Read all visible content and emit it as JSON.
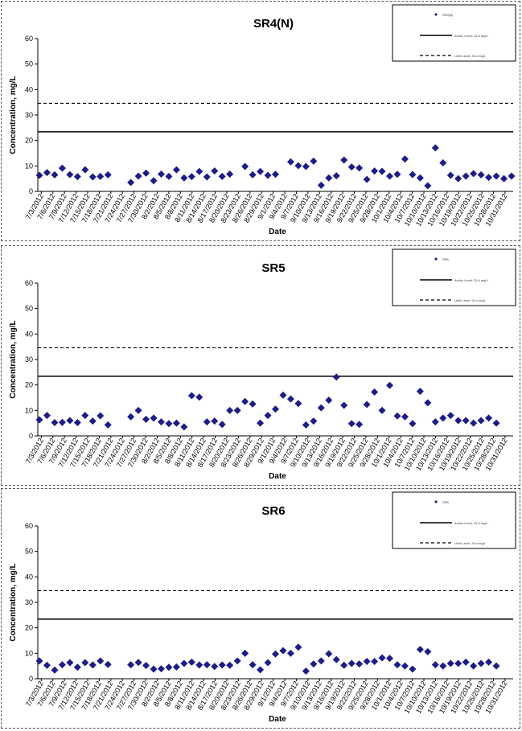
{
  "chart_data": [
    {
      "type": "scatter",
      "title": "SR4(N)",
      "xlabel": "Date",
      "ylabel": "Concentration, mg/L",
      "ylim": [
        0,
        60
      ],
      "yticks": [
        "0",
        "10",
        "20",
        "30",
        "40",
        "50",
        "60"
      ],
      "xticks": [
        "7/3/2012",
        "7/6/2012",
        "7/9/2012",
        "7/12/2012",
        "7/15/2012",
        "7/18/2012",
        "7/21/2012",
        "7/24/2012",
        "7/27/2012",
        "7/30/2012",
        "8/2/2012",
        "8/5/2012",
        "8/8/2012",
        "8/11/2012",
        "8/14/2012",
        "8/17/2012",
        "8/20/2012",
        "8/23/2012",
        "8/26/2012",
        "8/29/2012",
        "9/1/2012",
        "9/4/2012",
        "9/7/2012",
        "9/10/2012",
        "9/13/2012",
        "9/16/2012",
        "9/19/2012",
        "9/22/2012",
        "9/25/2012",
        "9/28/2012",
        "10/1/2012",
        "10/4/2012",
        "10/7/2012",
        "10/10/2012",
        "10/13/2012",
        "10/16/2012",
        "10/19/2012",
        "10/22/2012",
        "10/25/2012",
        "10/28/2012",
        "10/31/2012"
      ],
      "legend": {
        "placement": "top-right",
        "series": "SR4(N)",
        "action": "Action Level: 23.4 mg/L",
        "limit": "Limit Level: 34.x mg/L"
      },
      "lines": {
        "action_level": 23.4,
        "limit_level": 34.6
      },
      "series": [
        {
          "name": "SR4(N)",
          "x": [
            0,
            1,
            2,
            3,
            4,
            5,
            6,
            7,
            8,
            9,
            12,
            13,
            14,
            15,
            16,
            17,
            18,
            19,
            20,
            21,
            22,
            23,
            24,
            25,
            27,
            28,
            29,
            30,
            31,
            33,
            34,
            35,
            36,
            37,
            38,
            39,
            40,
            41,
            42,
            43,
            44,
            45,
            46,
            47,
            48,
            49,
            50,
            51,
            52,
            53,
            54,
            55,
            56,
            57,
            58,
            59,
            60,
            61,
            62
          ],
          "y": [
            6.3,
            7.4,
            6.5,
            9.1,
            6.6,
            5.8,
            8.5,
            5.7,
            5.9,
            6.5,
            3.5,
            6.0,
            7.2,
            4.2,
            6.8,
            5.9,
            8.5,
            5.3,
            5.8,
            7.8,
            5.7,
            8.0,
            5.9,
            6.8,
            9.8,
            6.5,
            7.8,
            6.3,
            6.7,
            11.6,
            10.1,
            9.8,
            11.9,
            2.4,
            5.3,
            6.1,
            12.3,
            9.6,
            9.2,
            4.7,
            8.0,
            7.9,
            6.0,
            6.7,
            12.7,
            6.6,
            5.3,
            2.2,
            17.1,
            11.2,
            6.3,
            5.0,
            6.0,
            7.0,
            6.5,
            5.5,
            6.0,
            5.0,
            6.0
          ]
        }
      ]
    },
    {
      "type": "scatter",
      "title": "SR5",
      "xlabel": "Date",
      "ylabel": "Concentration, mg/L",
      "ylim": [
        0,
        60
      ],
      "yticks": [
        "0",
        "10",
        "20",
        "30",
        "40",
        "50",
        "60"
      ],
      "xticks": [
        "7/3/2012",
        "7/6/2012",
        "7/9/2012",
        "7/12/2012",
        "7/15/2012",
        "7/18/2012",
        "7/21/2012",
        "7/24/2012",
        "7/27/2012",
        "7/30/2012",
        "8/2/2012",
        "8/5/2012",
        "8/8/2012",
        "8/11/2012",
        "8/14/2012",
        "8/17/2012",
        "8/20/2012",
        "8/23/2012",
        "8/26/2012",
        "8/29/2012",
        "9/1/2012",
        "9/4/2012",
        "9/7/2012",
        "9/10/2012",
        "9/13/2012",
        "9/16/2012",
        "9/19/2012",
        "9/22/2012",
        "9/25/2012",
        "9/28/2012",
        "10/1/2012",
        "10/4/2012",
        "10/7/2012",
        "10/10/2012",
        "10/13/2012",
        "10/16/2012",
        "10/19/2012",
        "10/22/2012",
        "10/25/2012",
        "10/28/2012",
        "10/31/2012"
      ],
      "legend": {
        "placement": "top-right",
        "series": "SR5",
        "action": "Action Level: 23.4 mg/L",
        "limit": "Limit Level: 34.x mg/L"
      },
      "lines": {
        "action_level": 23.4,
        "limit_level": 34.6
      },
      "series": [
        {
          "name": "SR5",
          "x": [
            0,
            1,
            2,
            3,
            4,
            5,
            6,
            7,
            8,
            9,
            12,
            13,
            14,
            15,
            16,
            17,
            18,
            19,
            20,
            21,
            22,
            23,
            24,
            25,
            26,
            27,
            28,
            29,
            30,
            31,
            32,
            33,
            34,
            35,
            36,
            37,
            38,
            39,
            40,
            41,
            42,
            43,
            44,
            45,
            46,
            47,
            48,
            49,
            50,
            51,
            52,
            53,
            54,
            55,
            56,
            57,
            58,
            59,
            60
          ],
          "y": [
            6.3,
            8.0,
            5.2,
            5.3,
            6.0,
            5.2,
            8.0,
            5.8,
            7.9,
            4.3,
            7.5,
            10.0,
            6.5,
            7.0,
            5.5,
            4.8,
            5.0,
            3.5,
            15.8,
            15.2,
            5.5,
            5.8,
            4.5,
            10.0,
            10.0,
            13.5,
            12.5,
            5.0,
            8.0,
            10.5,
            16.0,
            14.5,
            12.7,
            4.3,
            5.8,
            11.0,
            14.0,
            23.1,
            12.0,
            4.8,
            4.5,
            12.3,
            17.2,
            10.0,
            19.8,
            7.8,
            7.5,
            4.8,
            17.5,
            13.0,
            5.5,
            7.0,
            8.0,
            6.0,
            6.0,
            5.0,
            6.0,
            7.0,
            5.0
          ]
        }
      ]
    },
    {
      "type": "scatter",
      "title": "SR6",
      "xlabel": "Date",
      "ylabel": "Concentration, mg/L",
      "ylim": [
        0,
        60
      ],
      "yticks": [
        "0",
        "10",
        "20",
        "30",
        "40",
        "50",
        "60"
      ],
      "xticks": [
        "7/3/2012",
        "7/6/2012",
        "7/9/2012",
        "7/12/2012",
        "7/15/2012",
        "7/18/2012",
        "7/21/2012",
        "7/24/2012",
        "7/27/2012",
        "7/30/2012",
        "8/2/2012",
        "8/5/2012",
        "8/8/2012",
        "8/11/2012",
        "8/14/2012",
        "8/17/2012",
        "8/20/2012",
        "8/23/2012",
        "8/26/2012",
        "8/29/2012",
        "9/1/2012",
        "9/4/2012",
        "9/7/2012",
        "9/10/2012",
        "9/13/2012",
        "9/16/2012",
        "9/19/2012",
        "9/22/2012",
        "9/25/2012",
        "9/28/2012",
        "10/1/2012",
        "10/4/2012",
        "10/7/2012",
        "10/10/2012",
        "10/13/2012",
        "10/16/2012",
        "10/19/2012",
        "10/22/2012",
        "10/25/2012",
        "10/28/2012",
        "10/31/2012"
      ],
      "legend": {
        "placement": "top-right",
        "series": "SR6",
        "action": "Action Level: 23.4 mg/L",
        "limit": "Limit Level: 34.x mg/L"
      },
      "lines": {
        "action_level": 23.4,
        "limit_level": 34.6
      },
      "series": [
        {
          "name": "SR6",
          "x": [
            0,
            1,
            2,
            3,
            4,
            5,
            6,
            7,
            8,
            9,
            12,
            13,
            14,
            15,
            16,
            17,
            18,
            19,
            20,
            21,
            22,
            23,
            24,
            25,
            26,
            27,
            28,
            29,
            30,
            31,
            32,
            33,
            34,
            35,
            36,
            37,
            38,
            39,
            40,
            41,
            42,
            43,
            44,
            45,
            46,
            47,
            48,
            49,
            50,
            51,
            52,
            53,
            54,
            55,
            56,
            57,
            58,
            59,
            60
          ],
          "y": [
            7.0,
            5.3,
            3.4,
            5.5,
            6.3,
            4.5,
            6.3,
            5.4,
            7.0,
            5.6,
            5.5,
            6.4,
            5.2,
            3.8,
            3.9,
            4.5,
            4.6,
            6.0,
            6.5,
            5.4,
            5.5,
            4.8,
            5.4,
            5.3,
            7.0,
            10.0,
            5.5,
            3.5,
            6.3,
            9.7,
            11.0,
            10.0,
            12.4,
            3.0,
            5.8,
            7.0,
            9.8,
            7.5,
            5.3,
            6.0,
            5.8,
            6.8,
            6.8,
            8.2,
            8.0,
            5.5,
            5.0,
            3.8,
            11.5,
            10.6,
            5.5,
            5.0,
            6.0,
            6.0,
            6.5,
            5.0,
            6.0,
            6.5,
            5.0
          ]
        }
      ]
    }
  ],
  "colors": {
    "marker": "#1c1c8c",
    "action_line": "#000000",
    "limit_line": "#000000"
  }
}
